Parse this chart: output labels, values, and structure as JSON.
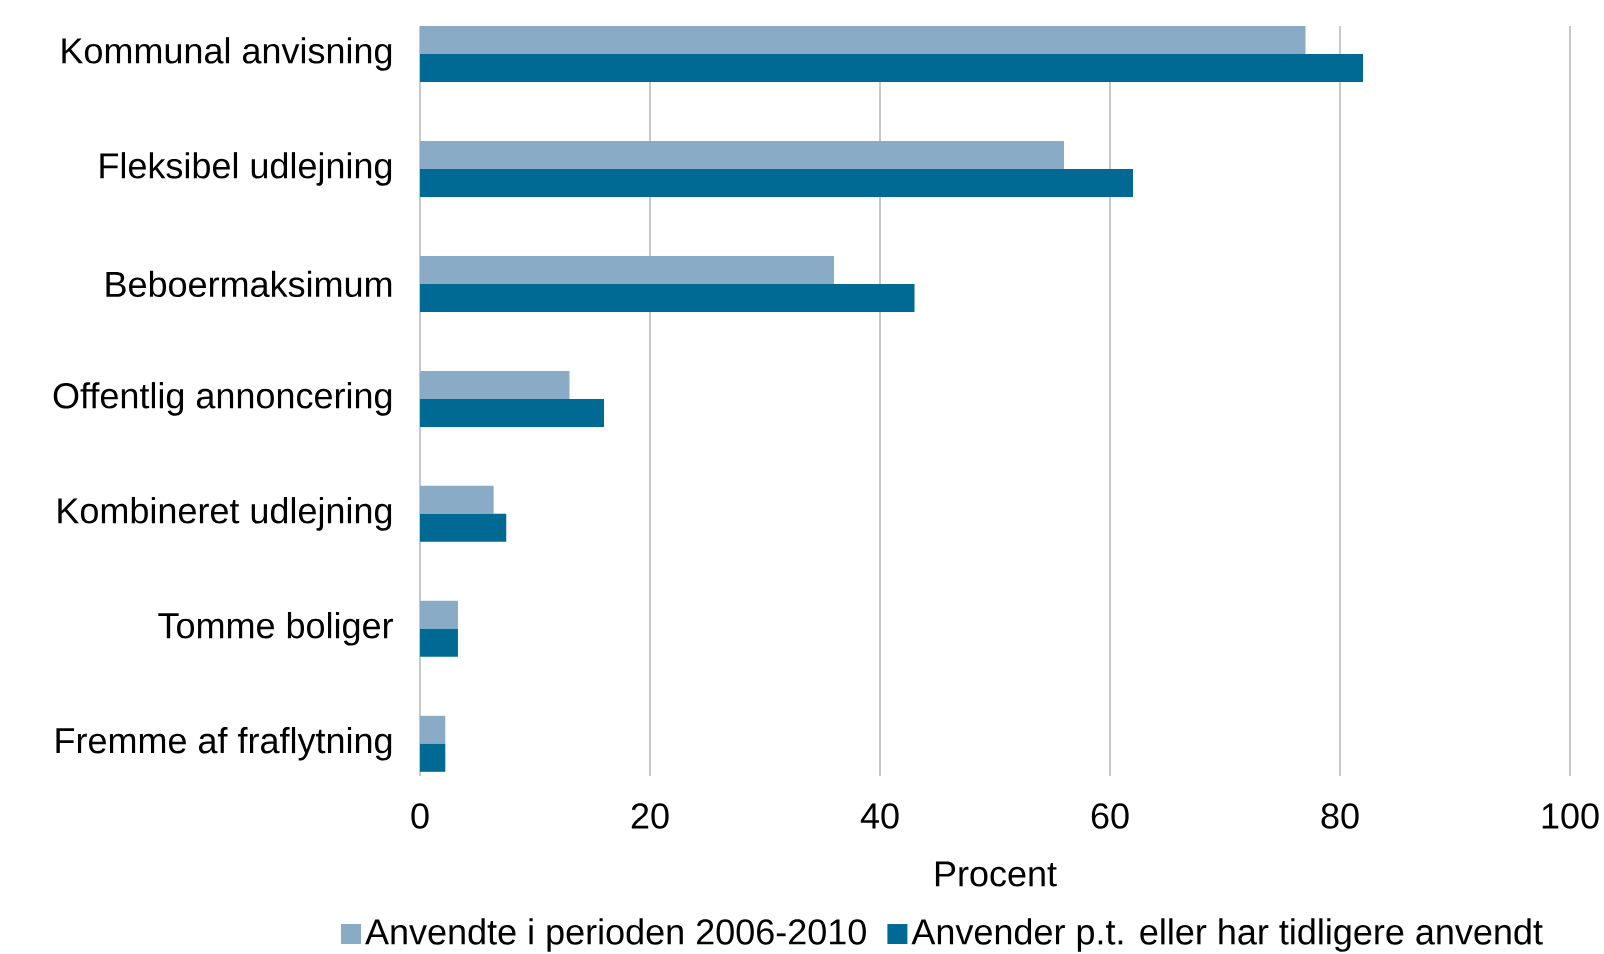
{
  "chart_data": {
    "type": "bar",
    "orientation": "horizontal",
    "categories": [
      "Kommunal anvisning",
      "Fleksibel udlejning",
      "Beboermaksimum",
      "Offentlig annoncering",
      "Kombineret udlejning",
      "Tomme boliger",
      "Fremme af fraflytning"
    ],
    "series": [
      {
        "name": "Anvendte i perioden 2006-2010",
        "color": "#8aabc6",
        "values": [
          77,
          56,
          36,
          13,
          6.4,
          3.3,
          2.2
        ]
      },
      {
        "name": "Anvender p.t. eller har tidligere anvendt",
        "color": "#006a94",
        "values": [
          82,
          62,
          43,
          16,
          7.5,
          3.3,
          2.2
        ]
      }
    ],
    "xlabel": "Procent",
    "xlim": [
      0,
      100
    ],
    "xticks": [
      0,
      20,
      40,
      60,
      80,
      100
    ],
    "grid": "x",
    "legend": "bottom"
  }
}
